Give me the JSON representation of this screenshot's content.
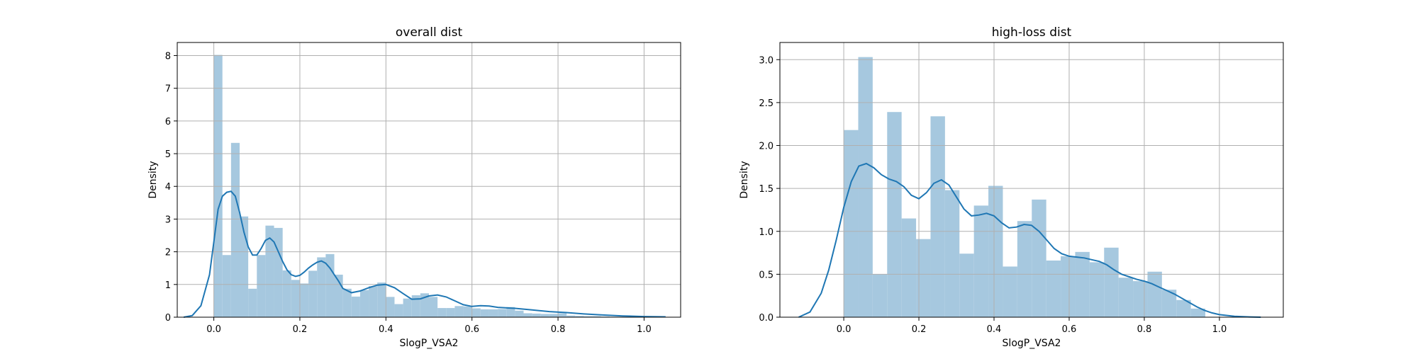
{
  "chart_data": [
    {
      "type": "bar",
      "overlay": "kde-line",
      "title": "overall dist",
      "xlabel": "SlogP_VSA2",
      "ylabel": "Density",
      "xlim": [
        -0.085,
        1.085
      ],
      "ylim": [
        0,
        8.4
      ],
      "xticks": [
        0.0,
        0.2,
        0.4,
        0.6,
        0.8,
        1.0
      ],
      "xtick_labels": [
        "0.0",
        "0.2",
        "0.4",
        "0.6",
        "0.8",
        "1.0"
      ],
      "yticks": [
        0,
        1,
        2,
        3,
        4,
        5,
        6,
        7,
        8
      ],
      "ytick_labels": [
        "0",
        "1",
        "2",
        "3",
        "4",
        "5",
        "6",
        "7",
        "8"
      ],
      "grid": true,
      "bar_color": "#a6c8df",
      "line_color": "#1f77b4",
      "bins": {
        "start": 0.0,
        "width": 0.02,
        "values": [
          8.02,
          1.9,
          5.33,
          3.08,
          0.87,
          1.9,
          2.8,
          2.73,
          1.43,
          1.14,
          1.03,
          1.42,
          1.83,
          1.93,
          1.3,
          0.87,
          0.63,
          0.83,
          0.95,
          1.06,
          0.62,
          0.4,
          0.57,
          0.67,
          0.73,
          0.62,
          0.28,
          0.28,
          0.34,
          0.33,
          0.27,
          0.24,
          0.24,
          0.25,
          0.31,
          0.2,
          0.12,
          0.11,
          0.1,
          0.1,
          0.12,
          0.05,
          0.04,
          0.03,
          0.03,
          0.02,
          0.01,
          0.01,
          0.01,
          0.01
        ]
      },
      "kde": {
        "x": [
          -0.07,
          -0.05,
          -0.03,
          -0.01,
          0.0,
          0.01,
          0.02,
          0.03,
          0.04,
          0.05,
          0.06,
          0.07,
          0.08,
          0.09,
          0.1,
          0.11,
          0.12,
          0.13,
          0.14,
          0.15,
          0.16,
          0.17,
          0.18,
          0.19,
          0.2,
          0.21,
          0.22,
          0.23,
          0.24,
          0.25,
          0.26,
          0.27,
          0.28,
          0.29,
          0.3,
          0.32,
          0.34,
          0.36,
          0.38,
          0.4,
          0.42,
          0.44,
          0.46,
          0.48,
          0.5,
          0.52,
          0.54,
          0.56,
          0.58,
          0.6,
          0.62,
          0.64,
          0.66,
          0.7,
          0.74,
          0.78,
          0.82,
          0.86,
          0.9,
          0.95,
          1.0,
          1.05
        ],
        "y": [
          0.0,
          0.05,
          0.35,
          1.3,
          2.3,
          3.3,
          3.7,
          3.82,
          3.85,
          3.7,
          3.2,
          2.6,
          2.15,
          1.9,
          1.9,
          2.1,
          2.35,
          2.42,
          2.3,
          2.0,
          1.7,
          1.45,
          1.3,
          1.25,
          1.28,
          1.38,
          1.5,
          1.6,
          1.68,
          1.72,
          1.65,
          1.5,
          1.3,
          1.1,
          0.88,
          0.75,
          0.8,
          0.9,
          0.98,
          1.0,
          0.9,
          0.72,
          0.55,
          0.56,
          0.65,
          0.68,
          0.62,
          0.5,
          0.38,
          0.33,
          0.35,
          0.34,
          0.3,
          0.27,
          0.22,
          0.17,
          0.14,
          0.1,
          0.07,
          0.04,
          0.02,
          0.01
        ]
      }
    },
    {
      "type": "bar",
      "overlay": "kde-line",
      "title": "high-loss dist",
      "xlabel": "SlogP_VSA2",
      "ylabel": "Density",
      "xlim": [
        -0.17,
        1.17
      ],
      "ylim": [
        0,
        3.2
      ],
      "xticks": [
        0.0,
        0.2,
        0.4,
        0.6,
        0.8,
        1.0
      ],
      "xtick_labels": [
        "0.0",
        "0.2",
        "0.4",
        "0.6",
        "0.8",
        "1.0"
      ],
      "yticks": [
        0.0,
        0.5,
        1.0,
        1.5,
        2.0,
        2.5,
        3.0
      ],
      "ytick_labels": [
        "0.0",
        "0.5",
        "1.0",
        "1.5",
        "2.0",
        "2.5",
        "3.0"
      ],
      "grid": true,
      "bar_color": "#a6c8df",
      "line_color": "#1f77b4",
      "bins": {
        "start": 0.0,
        "width": 0.0385,
        "values": [
          2.18,
          3.03,
          0.5,
          2.39,
          1.15,
          0.91,
          2.34,
          1.48,
          0.74,
          1.3,
          1.53,
          0.59,
          1.12,
          1.37,
          0.66,
          0.71,
          0.76,
          0.64,
          0.81,
          0.46,
          0.42,
          0.53,
          0.32,
          0.2,
          0.1,
          0.0
        ]
      },
      "kde": {
        "x": [
          -0.12,
          -0.09,
          -0.06,
          -0.04,
          -0.02,
          0.0,
          0.02,
          0.04,
          0.06,
          0.08,
          0.1,
          0.12,
          0.14,
          0.16,
          0.18,
          0.2,
          0.22,
          0.24,
          0.26,
          0.28,
          0.3,
          0.32,
          0.34,
          0.36,
          0.38,
          0.4,
          0.42,
          0.44,
          0.46,
          0.48,
          0.5,
          0.52,
          0.54,
          0.56,
          0.58,
          0.6,
          0.62,
          0.64,
          0.66,
          0.68,
          0.7,
          0.72,
          0.74,
          0.76,
          0.78,
          0.8,
          0.82,
          0.84,
          0.86,
          0.88,
          0.9,
          0.92,
          0.94,
          0.96,
          0.98,
          1.0,
          1.04,
          1.08,
          1.11
        ],
        "y": [
          0.0,
          0.06,
          0.28,
          0.55,
          0.9,
          1.28,
          1.58,
          1.76,
          1.79,
          1.74,
          1.66,
          1.61,
          1.58,
          1.52,
          1.42,
          1.38,
          1.45,
          1.56,
          1.6,
          1.54,
          1.4,
          1.26,
          1.18,
          1.19,
          1.21,
          1.18,
          1.1,
          1.04,
          1.05,
          1.08,
          1.07,
          1.0,
          0.9,
          0.8,
          0.74,
          0.71,
          0.7,
          0.69,
          0.67,
          0.65,
          0.61,
          0.55,
          0.5,
          0.47,
          0.44,
          0.42,
          0.39,
          0.35,
          0.31,
          0.27,
          0.22,
          0.17,
          0.12,
          0.08,
          0.05,
          0.03,
          0.01,
          0.003,
          0.0
        ]
      }
    }
  ]
}
